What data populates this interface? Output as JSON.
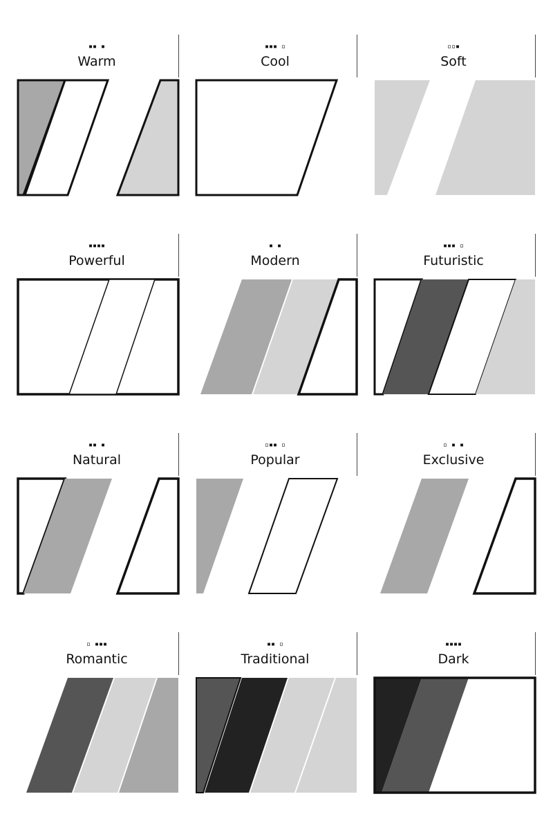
{
  "cards": [
    {
      "name": "Warm",
      "marks": "▪▪ ▪",
      "style": "warm"
    },
    {
      "name": "Cool",
      "marks": "▪▪▪ ▫",
      "style": "cool"
    },
    {
      "name": "Soft",
      "marks": "▫▫▪",
      "style": "soft"
    },
    {
      "name": "Powerful",
      "marks": "▪▪▪▪",
      "style": "powerful"
    },
    {
      "name": "Modern",
      "marks": "▪ ▪",
      "style": "modern"
    },
    {
      "name": "Futuristic",
      "marks": "▪▪▪ ▫",
      "style": "futuristic"
    },
    {
      "name": "Natural",
      "marks": "▪▪ ▪",
      "style": "natural"
    },
    {
      "name": "Popular",
      "marks": "▫▪▪ ▫",
      "style": "popular"
    },
    {
      "name": "Exclusive",
      "marks": "▫ ▪ ▪",
      "style": "exclusive"
    },
    {
      "name": "Romantic",
      "marks": "▫ ▪▪▪",
      "style": "romantic"
    },
    {
      "name": "Traditional",
      "marks": "▪▪ ▫",
      "style": "traditional"
    },
    {
      "name": "Dark",
      "marks": "▪▪▪▪",
      "style": "dark"
    }
  ],
  "colors": {
    "outline": "#111111",
    "light_gray": "#d4d4d4",
    "mid_gray": "#a8a8a8",
    "dark_gray": "#555555",
    "near_black": "#222222"
  }
}
